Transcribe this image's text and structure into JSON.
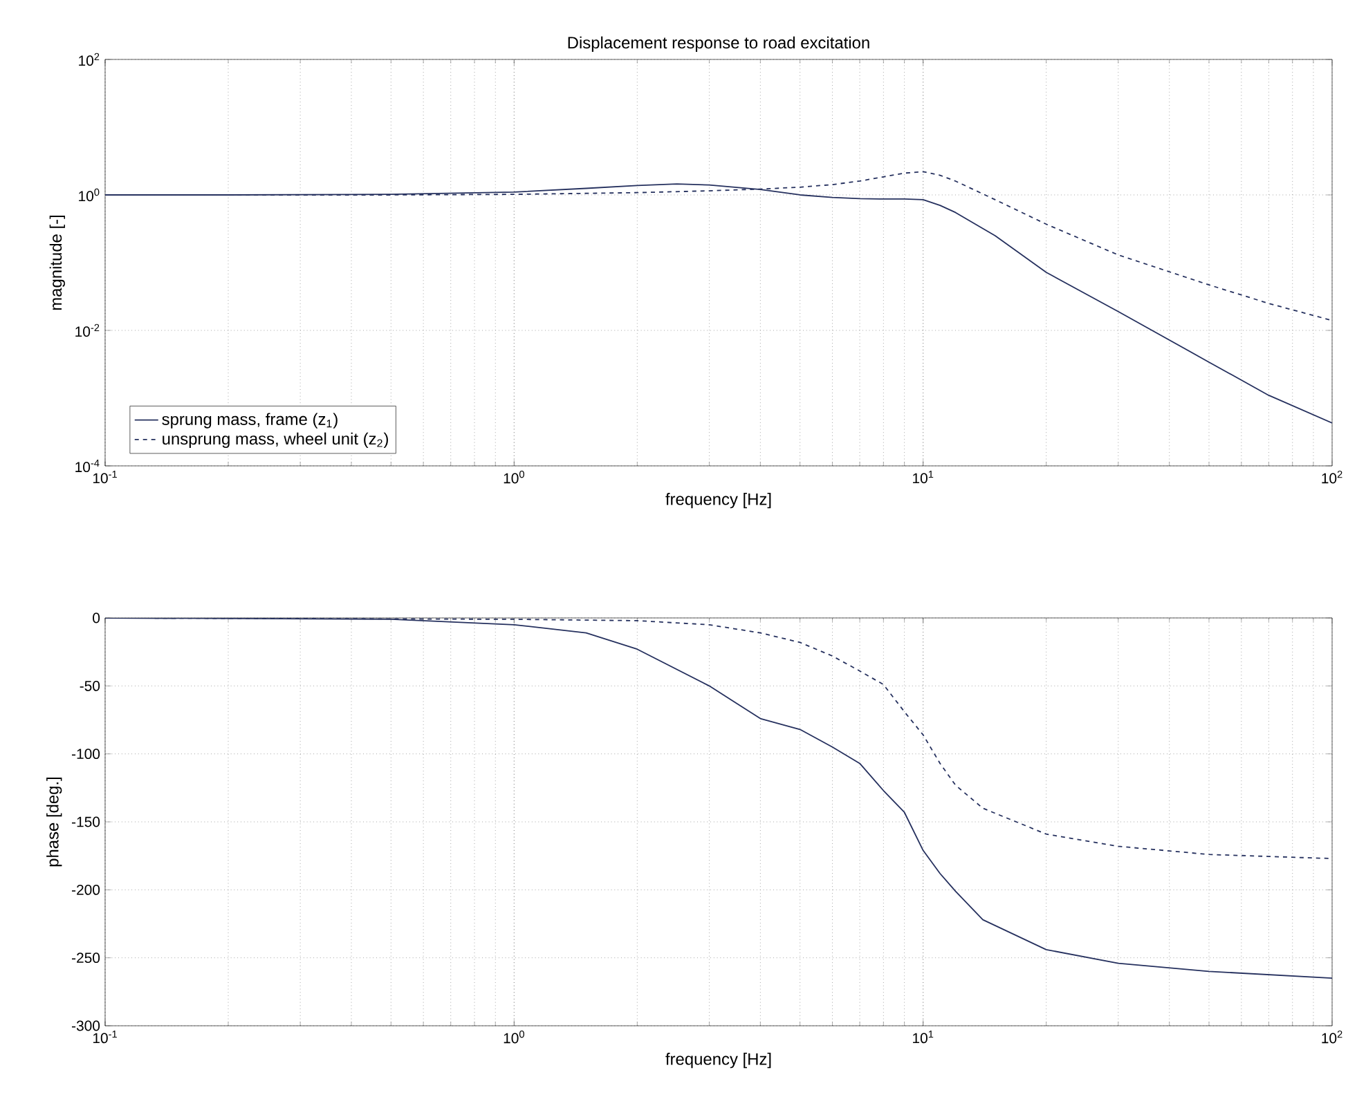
{
  "chart_data": [
    {
      "type": "line",
      "title": "Displacement response to road excitation",
      "xlabel": "frequency [Hz]",
      "ylabel": "magnitude [-]",
      "log": "xy",
      "grid": true,
      "legend": "bottom left",
      "xlim": [
        0.1,
        100
      ],
      "ylim": [
        0.0001,
        100
      ],
      "xticks": [
        {
          "value": 0.1,
          "label": "10$^{-1}$"
        },
        {
          "value": 1,
          "label": "10$^{0}$"
        },
        {
          "value": 10,
          "label": "10$^{1}$"
        },
        {
          "value": 100,
          "label": "10$^{2}$"
        }
      ],
      "yticks": [
        {
          "value": 0.0001,
          "label": "10$^{-4}$"
        },
        {
          "value": 0.01,
          "label": "10$^{-2}$"
        },
        {
          "value": 1,
          "label": "10$^{0}$"
        },
        {
          "value": 100,
          "label": "10$^{2}$"
        }
      ],
      "series": [
        {
          "name": "sprung mass, frame (z$_{1}$)",
          "color": "#25305e",
          "line_style": "solid",
          "x": [
            0.1,
            0.2,
            0.5,
            1,
            1.5,
            2,
            2.5,
            3,
            4,
            5,
            6,
            7,
            8,
            9,
            10,
            11,
            12,
            15,
            20,
            30,
            50,
            70,
            100
          ],
          "values": [
            1,
            1,
            1.02,
            1.1,
            1.25,
            1.38,
            1.45,
            1.4,
            1.2,
            1.0,
            0.92,
            0.88,
            0.87,
            0.87,
            0.85,
            0.7,
            0.55,
            0.25,
            0.072,
            0.019,
            0.0034,
            0.0011,
            0.00043
          ]
        },
        {
          "name": "unsprung mass, wheel unit (z$_{2}$)",
          "color": "#25305e",
          "line_style": "dashed",
          "x": [
            0.1,
            0.5,
            1,
            2,
            3,
            4,
            5,
            6,
            7,
            8,
            9,
            10,
            11,
            12,
            15,
            20,
            30,
            50,
            70,
            100
          ],
          "values": [
            1,
            1,
            1.02,
            1.08,
            1.15,
            1.22,
            1.3,
            1.42,
            1.6,
            1.85,
            2.1,
            2.2,
            1.95,
            1.6,
            0.85,
            0.37,
            0.13,
            0.047,
            0.025,
            0.014
          ]
        }
      ]
    },
    {
      "type": "line",
      "xlabel": "frequency [Hz]",
      "ylabel": "phase [deg.]",
      "log": "x",
      "grid": true,
      "xlim": [
        0.1,
        100
      ],
      "ylim": [
        -300,
        0
      ],
      "xticks": [
        {
          "value": 0.1,
          "label": "10$^{-1}$"
        },
        {
          "value": 1,
          "label": "10$^{0}$"
        },
        {
          "value": 10,
          "label": "10$^{1}$"
        },
        {
          "value": 100,
          "label": "10$^{2}$"
        }
      ],
      "yticks": [
        0,
        -50,
        -100,
        -150,
        -200,
        -250,
        -300
      ],
      "series": [
        {
          "color": "#25305e",
          "line_style": "solid",
          "x": [
            0.1,
            0.5,
            1,
            1.5,
            2,
            3,
            4,
            5,
            6,
            7,
            8,
            9,
            10,
            11,
            12,
            14,
            20,
            30,
            50,
            100
          ],
          "values": [
            0,
            -1,
            -5,
            -11,
            -23,
            -50,
            -74,
            -82,
            -95,
            -107,
            -127,
            -143,
            -171,
            -188,
            -201,
            -222,
            -244,
            -254,
            -260,
            -265
          ]
        },
        {
          "color": "#25305e",
          "line_style": "dashed",
          "x": [
            0.1,
            1,
            2,
            3,
            4,
            5,
            6,
            7,
            8,
            9,
            10,
            11,
            12,
            14,
            20,
            30,
            50,
            100
          ],
          "values": [
            0,
            -1,
            -2,
            -5,
            -11,
            -18,
            -28,
            -39,
            -49,
            -69,
            -86,
            -107,
            -123,
            -140,
            -159,
            -168,
            -174,
            -177
          ]
        }
      ]
    }
  ]
}
